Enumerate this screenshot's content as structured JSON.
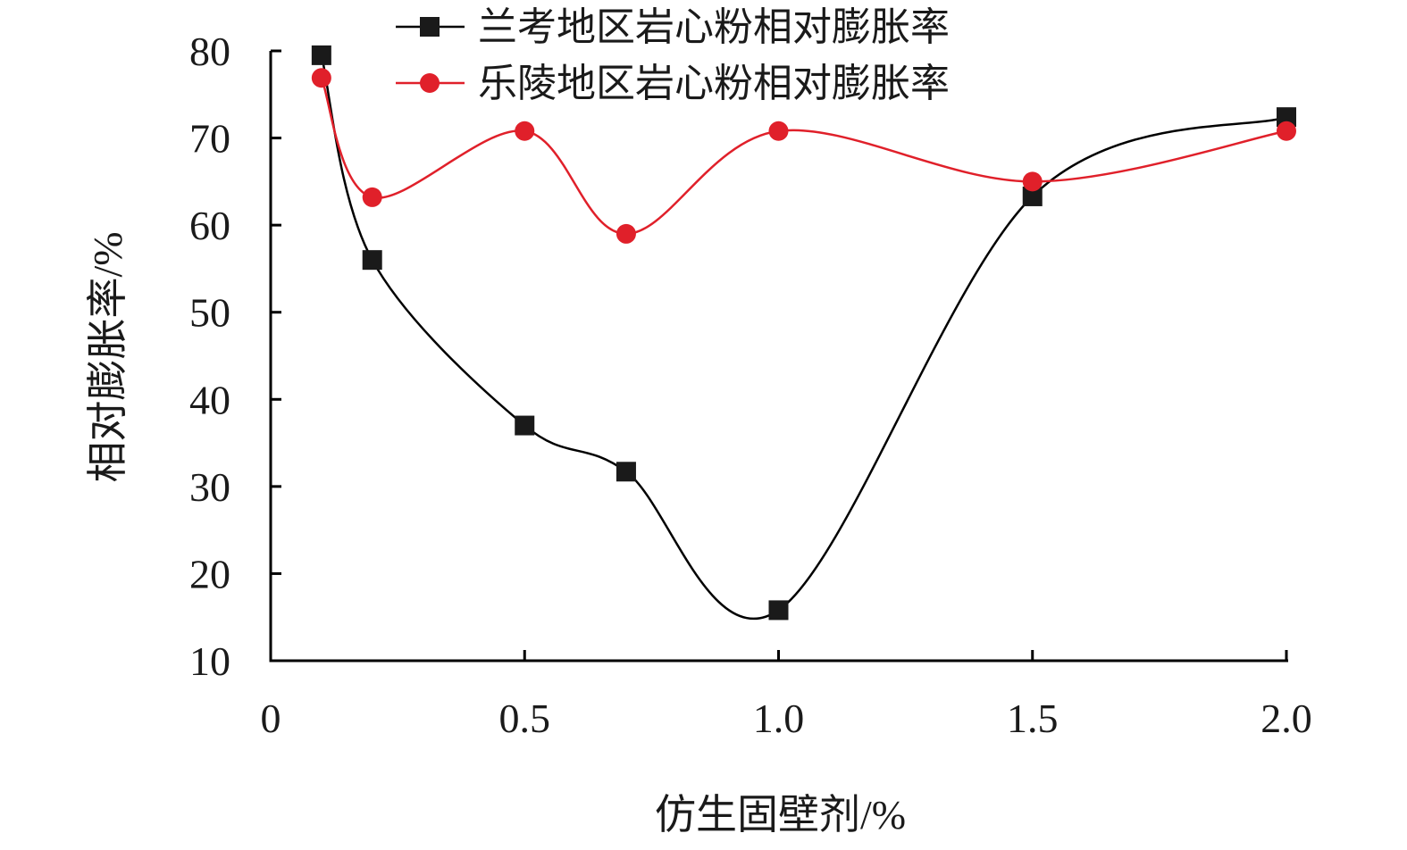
{
  "chart_data": {
    "type": "line",
    "title": "",
    "xlabel": "仿生固壁剂/%",
    "ylabel": "相对膨胀率/%",
    "xlim": [
      0,
      2.0
    ],
    "ylim": [
      10,
      80
    ],
    "x_ticks": [
      0,
      0.5,
      1.0,
      1.5,
      2.0
    ],
    "x_tick_labels": [
      "0",
      "0.5",
      "1.0",
      "1.5",
      "2.0"
    ],
    "y_ticks": [
      10,
      20,
      30,
      40,
      50,
      60,
      70,
      80
    ],
    "y_tick_labels": [
      "10",
      "20",
      "30",
      "40",
      "50",
      "60",
      "70",
      "80"
    ],
    "grid": false,
    "legend_position": "top",
    "smooth": true,
    "series": [
      {
        "name": "兰考地区岩心粉相对膨胀率",
        "color": "#000000",
        "marker": "square",
        "x": [
          0.1,
          0.2,
          0.5,
          0.7,
          1.0,
          1.5,
          2.0
        ],
        "y": [
          79.5,
          56,
          37,
          31.7,
          15.8,
          63.3,
          72.4
        ]
      },
      {
        "name": "乐陵地区岩心粉相对膨胀率",
        "color": "#e0202a",
        "marker": "circle",
        "x": [
          0.1,
          0.2,
          0.5,
          0.7,
          1.0,
          1.5,
          2.0
        ],
        "y": [
          76.9,
          63.2,
          70.8,
          59,
          70.8,
          65,
          70.8
        ]
      }
    ]
  }
}
